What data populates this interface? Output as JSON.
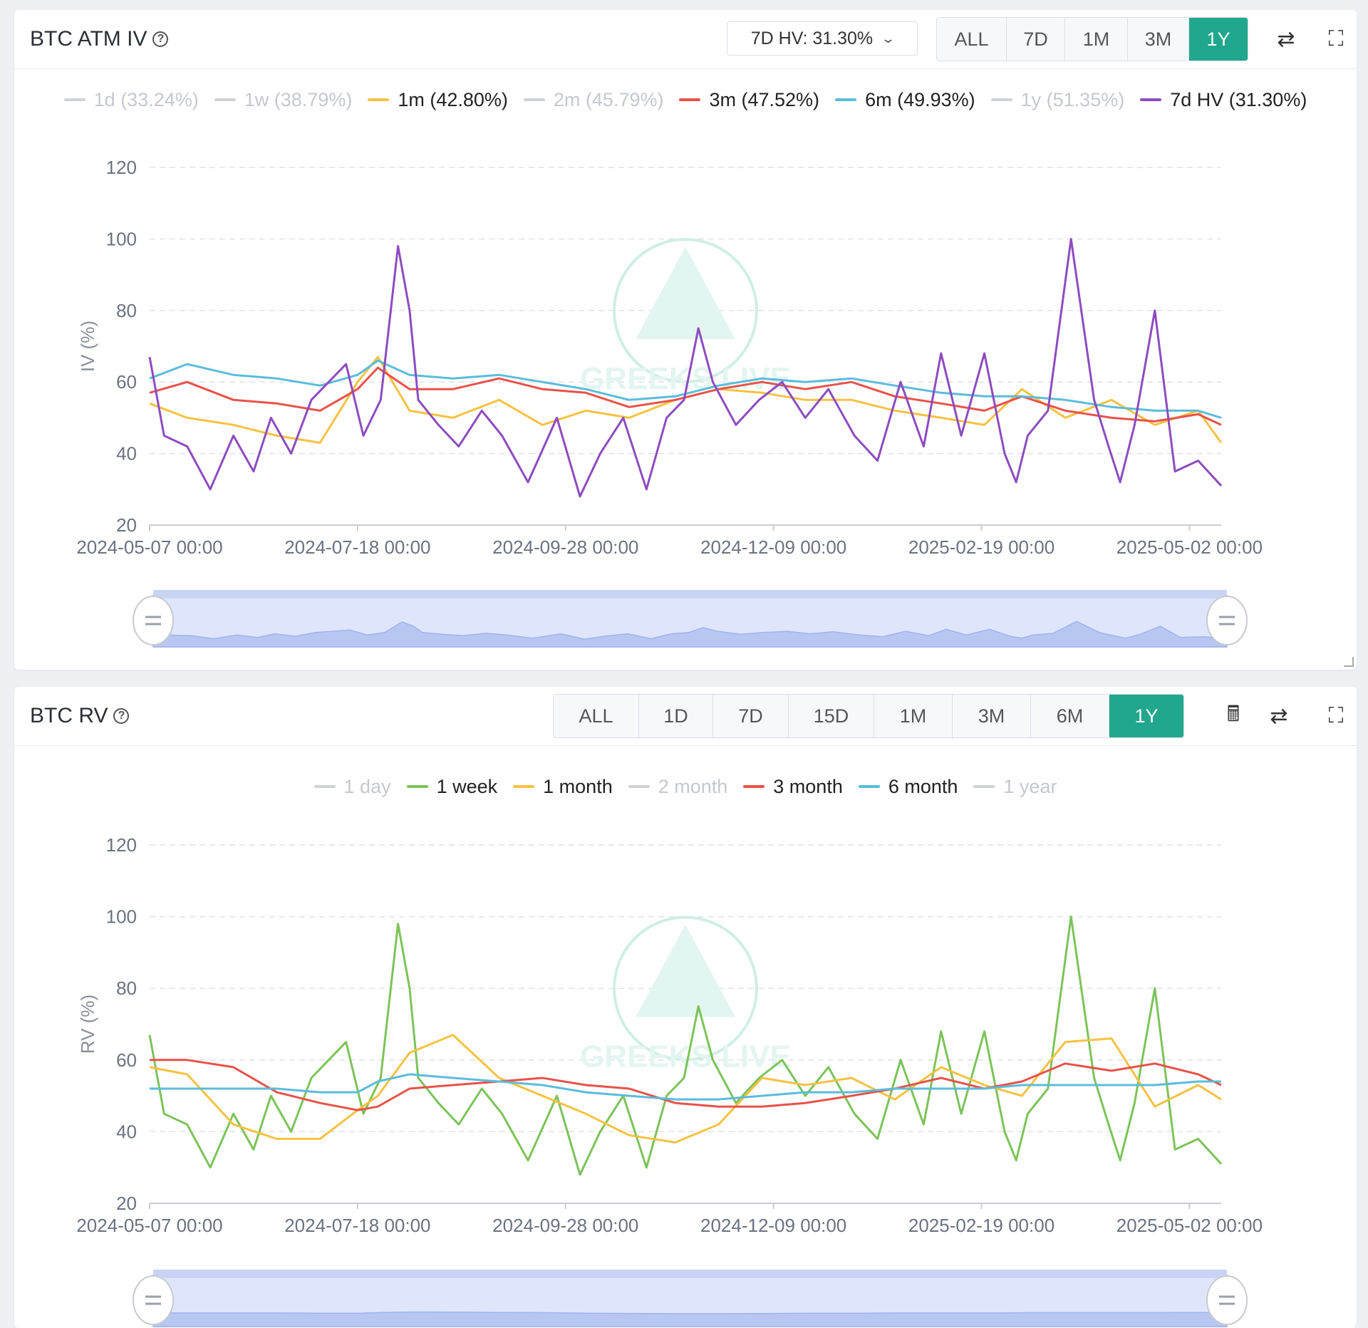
{
  "iv_panel": {
    "title": "BTC ATM IV",
    "hv_select": "7D HV: 31.30%",
    "buttons": [
      "ALL",
      "7D",
      "1M",
      "3M",
      "1Y"
    ],
    "active_button": "1Y",
    "legend": [
      {
        "label": "1d (33.24%)",
        "color": "#c8c8c8",
        "visible": false
      },
      {
        "label": "1w (38.79%)",
        "color": "#c8c8c8",
        "visible": false
      },
      {
        "label": "1m (42.80%)",
        "color": "#f5c242",
        "visible": true
      },
      {
        "label": "2m (45.79%)",
        "color": "#c8c8c8",
        "visible": false
      },
      {
        "label": "3m (47.52%)",
        "color": "#e8524a",
        "visible": true
      },
      {
        "label": "6m (49.93%)",
        "color": "#5bbcdc",
        "visible": true
      },
      {
        "label": "1y (51.35%)",
        "color": "#c8c8c8",
        "visible": false
      },
      {
        "label": "7d HV (31.30%)",
        "color": "#8d4cbf",
        "visible": true
      }
    ]
  },
  "rv_panel": {
    "title": "BTC RV",
    "buttons": [
      "ALL",
      "1D",
      "7D",
      "15D",
      "1M",
      "3M",
      "6M",
      "1Y"
    ],
    "active_button": "1Y",
    "legend": [
      {
        "label": "1 day",
        "color": "#c8c8c8",
        "visible": false
      },
      {
        "label": "1 week",
        "color": "#7cc35a",
        "visible": true
      },
      {
        "label": "1 month",
        "color": "#f5c242",
        "visible": true
      },
      {
        "label": "2 month",
        "color": "#c8c8c8",
        "visible": false
      },
      {
        "label": "3 month",
        "color": "#e8524a",
        "visible": true
      },
      {
        "label": "6 month",
        "color": "#5bbcdc",
        "visible": true
      },
      {
        "label": "1 year",
        "color": "#c8c8c8",
        "visible": false
      }
    ]
  },
  "watermark": "GREEKS.LIVE",
  "chart_data": [
    {
      "type": "line",
      "title": "BTC ATM IV",
      "ylabel": "IV (%)",
      "ylim": [
        20,
        120
      ],
      "yticks": [
        20,
        40,
        60,
        80,
        100,
        120
      ],
      "xlim": [
        "2024-05-07 00:00",
        "2025-05-13 00:00"
      ],
      "xticks": [
        "2024-05-07 00:00",
        "2024-07-18 00:00",
        "2024-09-28 00:00",
        "2024-12-09 00:00",
        "2025-02-19 00:00",
        "2025-05-02 00:00"
      ],
      "grid": true,
      "legend_position": "top",
      "series": [
        {
          "name": "1m (42.80%)",
          "color": "#f5c242",
          "x": [
            "2024-05-07",
            "2024-05-20",
            "2024-06-05",
            "2024-06-20",
            "2024-07-05",
            "2024-07-18",
            "2024-07-25",
            "2024-08-05",
            "2024-08-20",
            "2024-09-05",
            "2024-09-20",
            "2024-10-05",
            "2024-10-20",
            "2024-11-05",
            "2024-11-20",
            "2024-12-05",
            "2024-12-20",
            "2025-01-05",
            "2025-01-20",
            "2025-02-05",
            "2025-02-20",
            "2025-03-05",
            "2025-03-20",
            "2025-04-05",
            "2025-04-20",
            "2025-05-05",
            "2025-05-13"
          ],
          "values": [
            54,
            50,
            48,
            45,
            43,
            60,
            67,
            52,
            50,
            55,
            48,
            52,
            50,
            55,
            58,
            57,
            55,
            55,
            52,
            50,
            48,
            58,
            50,
            55,
            48,
            52,
            43
          ]
        },
        {
          "name": "3m (47.52%)",
          "color": "#e8524a",
          "x": [
            "2024-05-07",
            "2024-05-20",
            "2024-06-05",
            "2024-06-20",
            "2024-07-05",
            "2024-07-18",
            "2024-07-25",
            "2024-08-05",
            "2024-08-20",
            "2024-09-05",
            "2024-09-20",
            "2024-10-05",
            "2024-10-20",
            "2024-11-05",
            "2024-11-20",
            "2024-12-05",
            "2024-12-20",
            "2025-01-05",
            "2025-01-20",
            "2025-02-05",
            "2025-02-20",
            "2025-03-05",
            "2025-03-20",
            "2025-04-05",
            "2025-04-20",
            "2025-05-05",
            "2025-05-13"
          ],
          "values": [
            57,
            60,
            55,
            54,
            52,
            58,
            64,
            58,
            58,
            61,
            58,
            57,
            53,
            55,
            58,
            60,
            58,
            60,
            56,
            54,
            52,
            56,
            52,
            50,
            49,
            51,
            48
          ]
        },
        {
          "name": "6m (49.93%)",
          "color": "#5bbcdc",
          "x": [
            "2024-05-07",
            "2024-05-20",
            "2024-06-05",
            "2024-06-20",
            "2024-07-05",
            "2024-07-18",
            "2024-07-25",
            "2024-08-05",
            "2024-08-20",
            "2024-09-05",
            "2024-09-20",
            "2024-10-05",
            "2024-10-20",
            "2024-11-05",
            "2024-11-20",
            "2024-12-05",
            "2024-12-20",
            "2025-01-05",
            "2025-01-20",
            "2025-02-05",
            "2025-02-20",
            "2025-03-05",
            "2025-03-20",
            "2025-04-05",
            "2025-04-20",
            "2025-05-05",
            "2025-05-13"
          ],
          "values": [
            61,
            65,
            62,
            61,
            59,
            62,
            66,
            62,
            61,
            62,
            60,
            58,
            55,
            56,
            59,
            61,
            60,
            61,
            59,
            57,
            56,
            56,
            55,
            53,
            52,
            52,
            50
          ]
        },
        {
          "name": "7d HV (31.30%)",
          "color": "#8d4cbf",
          "x": [
            "2024-05-07",
            "2024-05-12",
            "2024-05-20",
            "2024-05-28",
            "2024-06-05",
            "2024-06-12",
            "2024-06-18",
            "2024-06-25",
            "2024-07-02",
            "2024-07-08",
            "2024-07-14",
            "2024-07-20",
            "2024-07-26",
            "2024-08-01",
            "2024-08-05",
            "2024-08-08",
            "2024-08-15",
            "2024-08-22",
            "2024-08-30",
            "2024-09-06",
            "2024-09-15",
            "2024-09-25",
            "2024-10-03",
            "2024-10-10",
            "2024-10-18",
            "2024-10-26",
            "2024-11-02",
            "2024-11-08",
            "2024-11-13",
            "2024-11-18",
            "2024-11-26",
            "2024-12-04",
            "2024-12-12",
            "2024-12-20",
            "2024-12-28",
            "2025-01-06",
            "2025-01-14",
            "2025-01-22",
            "2025-01-30",
            "2025-02-05",
            "2025-02-12",
            "2025-02-20",
            "2025-02-27",
            "2025-03-03",
            "2025-03-07",
            "2025-03-14",
            "2025-03-22",
            "2025-03-30",
            "2025-04-04",
            "2025-04-08",
            "2025-04-13",
            "2025-04-20",
            "2025-04-27",
            "2025-05-05",
            "2025-05-13"
          ],
          "values": [
            67,
            45,
            42,
            30,
            45,
            35,
            50,
            40,
            55,
            60,
            65,
            45,
            55,
            98,
            80,
            55,
            48,
            42,
            52,
            45,
            32,
            50,
            28,
            40,
            50,
            30,
            50,
            55,
            75,
            60,
            48,
            55,
            60,
            50,
            58,
            45,
            38,
            60,
            42,
            68,
            45,
            68,
            40,
            32,
            45,
            52,
            100,
            55,
            42,
            32,
            48,
            80,
            35,
            38,
            31
          ]
        }
      ]
    },
    {
      "type": "line",
      "title": "BTC RV",
      "ylabel": "RV (%)",
      "ylim": [
        20,
        120
      ],
      "yticks": [
        20,
        40,
        60,
        80,
        100,
        120
      ],
      "xlim": [
        "2024-05-07 00:00",
        "2025-05-13 00:00"
      ],
      "xticks": [
        "2024-05-07 00:00",
        "2024-07-18 00:00",
        "2024-09-28 00:00",
        "2024-12-09 00:00",
        "2025-02-19 00:00",
        "2025-05-02 00:00"
      ],
      "grid": true,
      "legend_position": "top",
      "series": [
        {
          "name": "1 week",
          "color": "#7cc35a",
          "x": [
            "2024-05-07",
            "2024-05-12",
            "2024-05-20",
            "2024-05-28",
            "2024-06-05",
            "2024-06-12",
            "2024-06-18",
            "2024-06-25",
            "2024-07-02",
            "2024-07-08",
            "2024-07-14",
            "2024-07-20",
            "2024-07-26",
            "2024-08-01",
            "2024-08-05",
            "2024-08-08",
            "2024-08-15",
            "2024-08-22",
            "2024-08-30",
            "2024-09-06",
            "2024-09-15",
            "2024-09-25",
            "2024-10-03",
            "2024-10-10",
            "2024-10-18",
            "2024-10-26",
            "2024-11-02",
            "2024-11-08",
            "2024-11-13",
            "2024-11-18",
            "2024-11-26",
            "2024-12-04",
            "2024-12-12",
            "2024-12-20",
            "2024-12-28",
            "2025-01-06",
            "2025-01-14",
            "2025-01-22",
            "2025-01-30",
            "2025-02-05",
            "2025-02-12",
            "2025-02-20",
            "2025-02-27",
            "2025-03-03",
            "2025-03-07",
            "2025-03-14",
            "2025-03-22",
            "2025-03-30",
            "2025-04-04",
            "2025-04-08",
            "2025-04-13",
            "2025-04-20",
            "2025-04-27",
            "2025-05-05",
            "2025-05-13"
          ],
          "values": [
            67,
            45,
            42,
            30,
            45,
            35,
            50,
            40,
            55,
            60,
            65,
            45,
            55,
            98,
            80,
            55,
            48,
            42,
            52,
            45,
            32,
            50,
            28,
            40,
            50,
            30,
            50,
            55,
            75,
            60,
            48,
            55,
            60,
            50,
            58,
            45,
            38,
            60,
            42,
            68,
            45,
            68,
            40,
            32,
            45,
            52,
            100,
            55,
            42,
            32,
            48,
            80,
            35,
            38,
            31
          ]
        },
        {
          "name": "1 month",
          "color": "#f5c242",
          "x": [
            "2024-05-07",
            "2024-05-20",
            "2024-06-05",
            "2024-06-20",
            "2024-07-05",
            "2024-07-18",
            "2024-07-25",
            "2024-08-05",
            "2024-08-20",
            "2024-09-05",
            "2024-09-20",
            "2024-10-05",
            "2024-10-20",
            "2024-11-05",
            "2024-11-20",
            "2024-12-05",
            "2024-12-20",
            "2025-01-05",
            "2025-01-20",
            "2025-02-05",
            "2025-02-20",
            "2025-03-05",
            "2025-03-20",
            "2025-04-05",
            "2025-04-20",
            "2025-05-05",
            "2025-05-13"
          ],
          "values": [
            58,
            56,
            42,
            38,
            38,
            46,
            50,
            62,
            67,
            55,
            50,
            45,
            39,
            37,
            42,
            55,
            53,
            55,
            49,
            58,
            53,
            50,
            65,
            66,
            47,
            53,
            49
          ]
        },
        {
          "name": "3 month",
          "color": "#e8524a",
          "x": [
            "2024-05-07",
            "2024-05-20",
            "2024-06-05",
            "2024-06-20",
            "2024-07-05",
            "2024-07-18",
            "2024-07-25",
            "2024-08-05",
            "2024-08-20",
            "2024-09-05",
            "2024-09-20",
            "2024-10-05",
            "2024-10-20",
            "2024-11-05",
            "2024-11-20",
            "2024-12-05",
            "2024-12-20",
            "2025-01-05",
            "2025-01-20",
            "2025-02-05",
            "2025-02-20",
            "2025-03-05",
            "2025-03-20",
            "2025-04-05",
            "2025-04-20",
            "2025-05-05",
            "2025-05-13"
          ],
          "values": [
            60,
            60,
            58,
            51,
            48,
            46,
            47,
            52,
            53,
            54,
            55,
            53,
            52,
            48,
            47,
            47,
            48,
            50,
            52,
            55,
            52,
            54,
            59,
            57,
            59,
            56,
            53
          ]
        },
        {
          "name": "6 month",
          "color": "#5bbcdc",
          "x": [
            "2024-05-07",
            "2024-05-20",
            "2024-06-05",
            "2024-06-20",
            "2024-07-05",
            "2024-07-18",
            "2024-07-25",
            "2024-08-05",
            "2024-08-20",
            "2024-09-05",
            "2024-09-20",
            "2024-10-05",
            "2024-10-20",
            "2024-11-05",
            "2024-11-20",
            "2024-12-05",
            "2024-12-20",
            "2025-01-05",
            "2025-01-20",
            "2025-02-05",
            "2025-02-20",
            "2025-03-05",
            "2025-03-20",
            "2025-04-05",
            "2025-04-20",
            "2025-05-05",
            "2025-05-13"
          ],
          "values": [
            52,
            52,
            52,
            52,
            51,
            51,
            54,
            56,
            55,
            54,
            53,
            51,
            50,
            49,
            49,
            50,
            51,
            51,
            52,
            52,
            52,
            53,
            53,
            53,
            53,
            54,
            54
          ]
        }
      ]
    }
  ]
}
